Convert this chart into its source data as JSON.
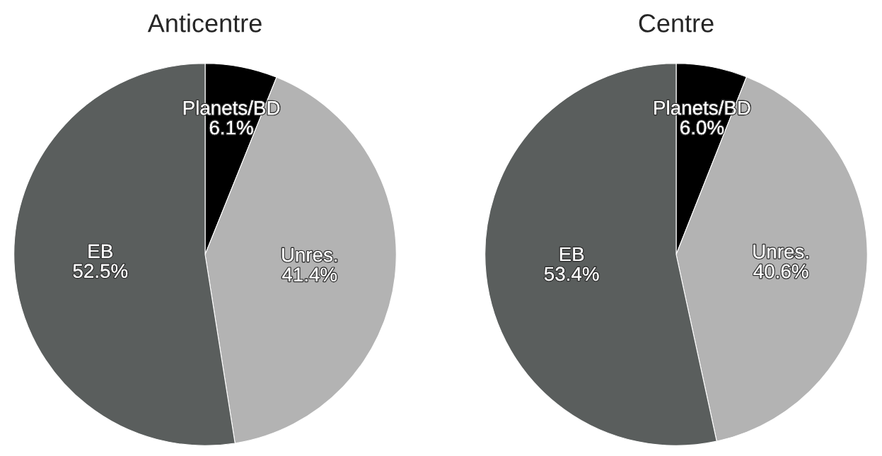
{
  "chart_data": [
    {
      "type": "pie",
      "title": "Anticentre",
      "categories": [
        "Planets/BD",
        "Unres.",
        "EB"
      ],
      "values": [
        6.1,
        41.4,
        52.5
      ],
      "value_labels": [
        "6.1%",
        "41.4%",
        "52.5%"
      ],
      "colors": [
        "#000000",
        "#b3b3b3",
        "#5a5e5d"
      ]
    },
    {
      "type": "pie",
      "title": "Centre",
      "categories": [
        "Planets/BD",
        "Unres.",
        "EB"
      ],
      "values": [
        6.0,
        40.6,
        53.4
      ],
      "value_labels": [
        "6.0%",
        "40.6%",
        "53.4%"
      ],
      "colors": [
        "#000000",
        "#b3b3b3",
        "#5a5e5d"
      ]
    }
  ]
}
